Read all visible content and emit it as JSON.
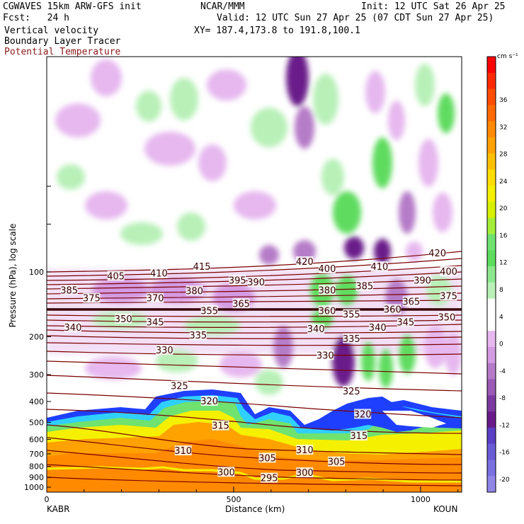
{
  "header": {
    "model_title": "CGWAVES 15km ARW-GFS init",
    "forecast": "Fcst:   24 h",
    "field1": "Vertical velocity",
    "field2": "Boundary Layer Tracer",
    "field3": "Potential Temperature",
    "org": "NCAR/MMM",
    "init": "Init: 12 UTC Sat 26 Apr 25",
    "valid": "Valid: 12 UTC Sun 27 Apr 25 (07 CDT Sun 27 Apr 25)",
    "xy": "XY= 187.4,173.8 to 191.8,100.1"
  },
  "colors": {
    "theta_contour": "#7a0000",
    "wind_neg_light": "#e6b8ef",
    "wind_neg_mid": "#b57bc8",
    "wind_neg_dark": "#6a1b8a",
    "wind_pos_light": "#b8f0b8",
    "wind_pos_mid": "#5edc5e",
    "tracer_blue": "#1f3fff",
    "tracer_cyan": "#2fd0ff",
    "tracer_yellow": "#f5f000",
    "tracer_orange": "#ff8a00"
  },
  "chart_data": {
    "type": "heatmap",
    "title": "Vertical velocity",
    "xlabel": "Distance (km)",
    "ylabel": "Pressure (hPa), log scale",
    "xlim": [
      0,
      1110
    ],
    "x_ticks": [
      "0",
      "500",
      "1000"
    ],
    "y_ticks": [
      "100",
      "200",
      "300",
      "400",
      "500",
      "600",
      "700",
      "800",
      "900",
      "1000"
    ],
    "y_scale": "log",
    "start_label": "KABR",
    "end_label": "KOUN",
    "colorbar": {
      "unit": "cm s⁻¹",
      "labels": [
        "36",
        "32",
        "28",
        "24",
        "20",
        "16",
        "12",
        "8",
        "4",
        "0",
        "-4",
        "-8",
        "-12",
        "-16",
        "-20"
      ],
      "colors": [
        "#ff0000",
        "#ff2a00",
        "#ff4d00",
        "#ff6a00",
        "#ff8a00",
        "#ffa200",
        "#ffc000",
        "#ffdd00",
        "#f5f000",
        "#d6f000",
        "#a4ee3a",
        "#6fe26f",
        "#5edc5e",
        "#8de88d",
        "#b8f0b8",
        "#ffffff",
        "#ffffff",
        "#e6b8ef",
        "#d49ae2",
        "#b57bc8",
        "#9a5ab5",
        "#7c3aa0",
        "#6a1b8a",
        "#5b3fc4",
        "#6a5bd6",
        "#7a70e0",
        "#8f86e8"
      ]
    },
    "theta_labels": [
      {
        "value": "420",
        "x": 690,
        "p": 90
      },
      {
        "value": "420",
        "x": 1045,
        "p": 82
      },
      {
        "value": "415",
        "x": 415,
        "p": 95
      },
      {
        "value": "410",
        "x": 300,
        "p": 102
      },
      {
        "value": "410",
        "x": 890,
        "p": 95
      },
      {
        "value": "405",
        "x": 185,
        "p": 105
      },
      {
        "value": "400",
        "x": 750,
        "p": 97
      },
      {
        "value": "400",
        "x": 1075,
        "p": 100
      },
      {
        "value": "395",
        "x": 510,
        "p": 110
      },
      {
        "value": "390",
        "x": 560,
        "p": 112
      },
      {
        "value": "390",
        "x": 1005,
        "p": 110
      },
      {
        "value": "385",
        "x": 60,
        "p": 122
      },
      {
        "value": "385",
        "x": 850,
        "p": 117
      },
      {
        "value": "380",
        "x": 395,
        "p": 123
      },
      {
        "value": "380",
        "x": 750,
        "p": 122
      },
      {
        "value": "375",
        "x": 120,
        "p": 133
      },
      {
        "value": "375",
        "x": 1075,
        "p": 130
      },
      {
        "value": "370",
        "x": 290,
        "p": 133
      },
      {
        "value": "365",
        "x": 520,
        "p": 141
      },
      {
        "value": "365",
        "x": 975,
        "p": 138
      },
      {
        "value": "360",
        "x": 750,
        "p": 152
      },
      {
        "value": "360",
        "x": 925,
        "p": 150
      },
      {
        "value": "355",
        "x": 435,
        "p": 152
      },
      {
        "value": "355",
        "x": 815,
        "p": 158
      },
      {
        "value": "350",
        "x": 205,
        "p": 166
      },
      {
        "value": "350",
        "x": 1070,
        "p": 163
      },
      {
        "value": "345",
        "x": 290,
        "p": 172
      },
      {
        "value": "345",
        "x": 960,
        "p": 172
      },
      {
        "value": "340",
        "x": 70,
        "p": 182
      },
      {
        "value": "340",
        "x": 720,
        "p": 185
      },
      {
        "value": "340",
        "x": 885,
        "p": 182
      },
      {
        "value": "335",
        "x": 405,
        "p": 198
      },
      {
        "value": "335",
        "x": 815,
        "p": 205
      },
      {
        "value": "330",
        "x": 315,
        "p": 232
      },
      {
        "value": "330",
        "x": 745,
        "p": 245
      },
      {
        "value": "325",
        "x": 355,
        "p": 340
      },
      {
        "value": "325",
        "x": 815,
        "p": 360
      },
      {
        "value": "320",
        "x": 435,
        "p": 400
      },
      {
        "value": "320",
        "x": 845,
        "p": 460
      },
      {
        "value": "315",
        "x": 465,
        "p": 520
      },
      {
        "value": "315",
        "x": 835,
        "p": 580
      },
      {
        "value": "310",
        "x": 365,
        "p": 680
      },
      {
        "value": "310",
        "x": 690,
        "p": 675
      },
      {
        "value": "305",
        "x": 590,
        "p": 735
      },
      {
        "value": "305",
        "x": 775,
        "p": 765
      },
      {
        "value": "300",
        "x": 480,
        "p": 855
      },
      {
        "value": "300",
        "x": 690,
        "p": 860
      },
      {
        "value": "295",
        "x": 595,
        "p": 910
      }
    ]
  }
}
